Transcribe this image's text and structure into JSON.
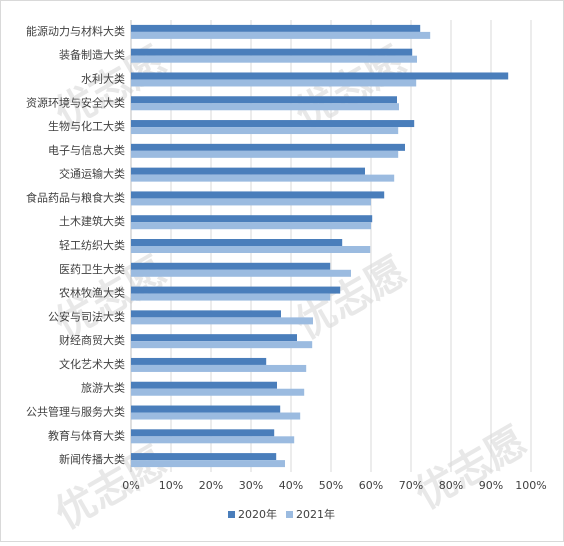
{
  "chart_data": {
    "type": "hbar",
    "watermark": "优志愿",
    "categories": [
      "能源动力与材料大类",
      "装备制造大类",
      "水利大类",
      "资源环境与安全大类",
      "生物与化工大类",
      "电子与信息大类",
      "交通运输大类",
      "食品药品与粮食大类",
      "土木建筑大类",
      "轻工纺织大类",
      "医药卫生大类",
      "农林牧渔大类",
      "公安与司法大类",
      "财经商贸大类",
      "文化艺术大类",
      "旅游大类",
      "公共管理与服务大类",
      "教育与体育大类",
      "新闻传播大类"
    ],
    "series": [
      {
        "name": "2020年",
        "color": "#4a7ebb",
        "values": [
          72.3,
          70.3,
          94.3,
          66.5,
          70.8,
          68.5,
          58.5,
          63.3,
          60.3,
          52.8,
          49.8,
          52.3,
          37.5,
          41.5,
          33.8,
          36.5,
          37.3,
          35.8,
          36.3
        ]
      },
      {
        "name": "2021年",
        "color": "#9bbbe0",
        "values": [
          74.8,
          71.5,
          71.3,
          67,
          66.8,
          66.8,
          65.8,
          60,
          60,
          59.8,
          55,
          49.8,
          45.5,
          45.3,
          43.8,
          43.3,
          42.3,
          40.8,
          38.5
        ]
      }
    ],
    "xlim": [
      0,
      100
    ],
    "xticks": [
      {
        "value": 0,
        "label": "0%"
      },
      {
        "value": 10,
        "label": "10%"
      },
      {
        "value": 20,
        "label": "20%"
      },
      {
        "value": 30,
        "label": "30%"
      },
      {
        "value": 40,
        "label": "40%"
      },
      {
        "value": 50,
        "label": "50%"
      },
      {
        "value": 60,
        "label": "60%"
      },
      {
        "value": 70,
        "label": "70%"
      },
      {
        "value": 80,
        "label": "80%"
      },
      {
        "value": 90,
        "label": "90%"
      },
      {
        "value": 100,
        "label": "100%"
      }
    ],
    "grid": true,
    "legend": "bottom"
  }
}
